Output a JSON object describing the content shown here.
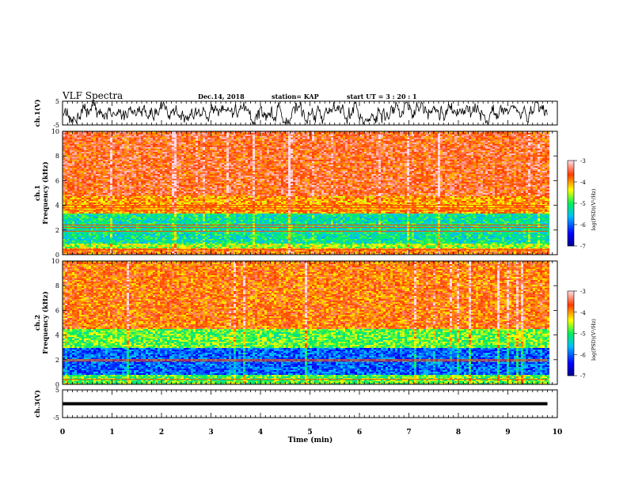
{
  "header": {
    "title": "VLF Spectra",
    "date": "Dec.14, 2018",
    "station": "station= KAP",
    "start": "start  UT  =   3  : 20 : 1"
  },
  "chart_data": [
    {
      "type": "line",
      "panel": "ch1-waveform",
      "ylabel": "ch.1(V)",
      "ylim": [
        -5,
        5
      ],
      "yticks": [
        "5",
        "-5"
      ],
      "xlim": [
        0,
        10
      ],
      "data_extent_min": 9.8,
      "trace_color": "#000000"
    },
    {
      "type": "heatmap",
      "panel": "ch1-spectrogram",
      "ylabel": "ch.1\nFrequency  (kHz)",
      "ylim": [
        0,
        10
      ],
      "yticks": [
        "0",
        "2",
        "4",
        "6",
        "8",
        "10"
      ],
      "xlim": [
        0,
        10
      ],
      "colorbar": {
        "label": "log(PSD)(V²/Hz)",
        "range": [
          -7,
          -3
        ],
        "ticks": [
          "-3",
          "-4",
          "-5",
          "-6",
          "-7"
        ]
      },
      "bands_khz": [
        {
          "from": 0.0,
          "to": 0.6,
          "level": -3.8
        },
        {
          "from": 0.6,
          "to": 1.0,
          "level": -4.6
        },
        {
          "from": 1.0,
          "to": 3.4,
          "level": -5.2
        },
        {
          "from": 3.4,
          "to": 4.8,
          "level": -4.0
        },
        {
          "from": 4.8,
          "to": 10.0,
          "level": -3.6
        }
      ],
      "lines_khz": [
        0.4,
        1.9,
        2.2,
        2.4,
        3.6,
        3.8,
        4.0
      ]
    },
    {
      "type": "heatmap",
      "panel": "ch2-spectrogram",
      "ylabel": "ch.2\nFrequency  (kHz)",
      "ylim": [
        0,
        10
      ],
      "yticks": [
        "0",
        "2",
        "4",
        "6",
        "8",
        "10"
      ],
      "xlim": [
        0,
        10
      ],
      "colorbar": {
        "label": "log(PSD)(V²/Hz)",
        "range": [
          -7,
          -3
        ],
        "ticks": [
          "-3",
          "-4",
          "-5",
          "-6",
          "-7"
        ]
      },
      "bands_khz": [
        {
          "from": 0.0,
          "to": 0.8,
          "level": -4.8
        },
        {
          "from": 0.8,
          "to": 3.0,
          "level": -6.0
        },
        {
          "from": 3.0,
          "to": 4.5,
          "level": -4.8
        },
        {
          "from": 4.5,
          "to": 10.0,
          "level": -3.8
        }
      ],
      "lines_khz": [
        0.4,
        1.9,
        2.0
      ]
    },
    {
      "type": "line",
      "panel": "ch3-waveform",
      "ylabel": "ch.3(V)",
      "ylim": [
        -5,
        5
      ],
      "yticks": [
        "5",
        "-5"
      ],
      "xlim": [
        0,
        10
      ],
      "constant_value": 0,
      "data_extent_min": 9.8
    }
  ],
  "xaxis": {
    "label": "Time  (min)",
    "ticks": [
      "0",
      "1",
      "2",
      "3",
      "4",
      "5",
      "6",
      "7",
      "8",
      "9",
      "10"
    ]
  }
}
